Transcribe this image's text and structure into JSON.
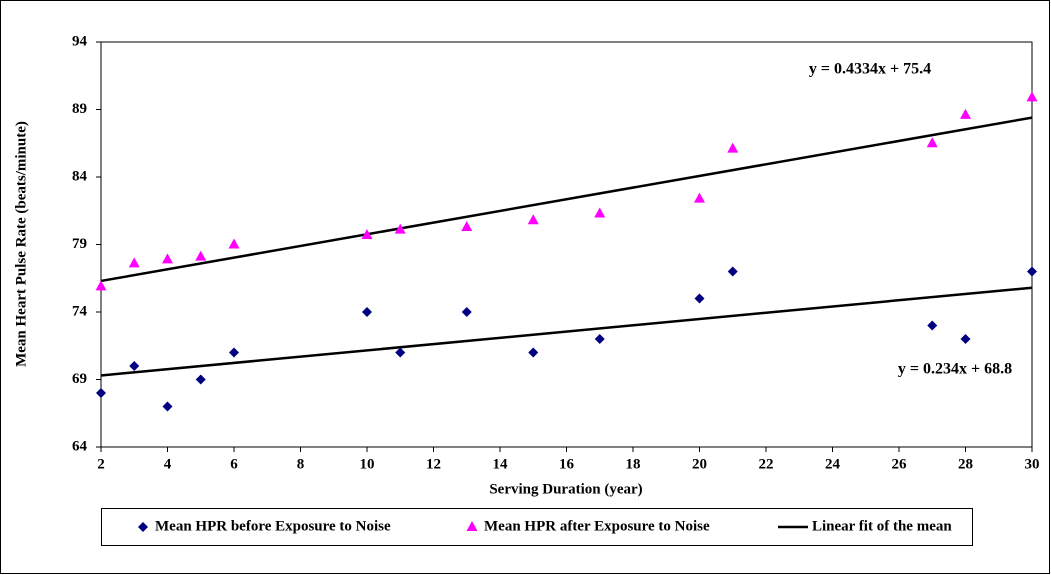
{
  "chart_data": {
    "type": "scatter",
    "x_label": "Serving Duration (year)",
    "y_label": "Mean Heart Pulse Rate (beats/minute)",
    "xlim": [
      2,
      30
    ],
    "xticks": [
      2,
      4,
      6,
      8,
      10,
      12,
      14,
      16,
      18,
      20,
      22,
      24,
      26,
      28,
      30
    ],
    "ylim": [
      64,
      94
    ],
    "yticks": [
      64,
      69,
      74,
      79,
      84,
      89,
      94
    ],
    "grid": false,
    "legend": "bottom",
    "series": [
      {
        "name": "Mean HPR before Exposure to Noise",
        "color": "#000080",
        "marker": "diamond",
        "x": [
          2,
          3,
          4,
          5,
          6,
          10,
          11,
          13,
          15,
          17,
          20,
          21,
          27,
          28,
          30
        ],
        "values": [
          68,
          70,
          67,
          69,
          71,
          74,
          71,
          74,
          71,
          72,
          75,
          77,
          73,
          72,
          77
        ]
      },
      {
        "name": "Mean HPR after Exposure to Noise",
        "color": "#ff00ff",
        "marker": "triangle",
        "x": [
          2,
          3,
          4,
          5,
          6,
          10,
          11,
          13,
          15,
          17,
          20,
          21,
          27,
          28,
          30
        ],
        "values": [
          75.9,
          77.6,
          77.9,
          78.1,
          79,
          79.7,
          80.1,
          80.3,
          80.8,
          81.3,
          82.4,
          86.1,
          86.5,
          88.6,
          89.9
        ]
      }
    ],
    "fit": {
      "name": "Linear fit of the mean",
      "color": "#000000",
      "lines": [
        {
          "x": [
            2,
            30
          ],
          "values": [
            69.3,
            75.8
          ],
          "equation": "y = 0.234x + 68.8",
          "equation_color": "#000080"
        },
        {
          "x": [
            2,
            30
          ],
          "values": [
            76.3,
            88.4
          ],
          "equation": "y = 0.4334x + 75.4",
          "equation_color": "#ff00ff"
        }
      ]
    }
  }
}
